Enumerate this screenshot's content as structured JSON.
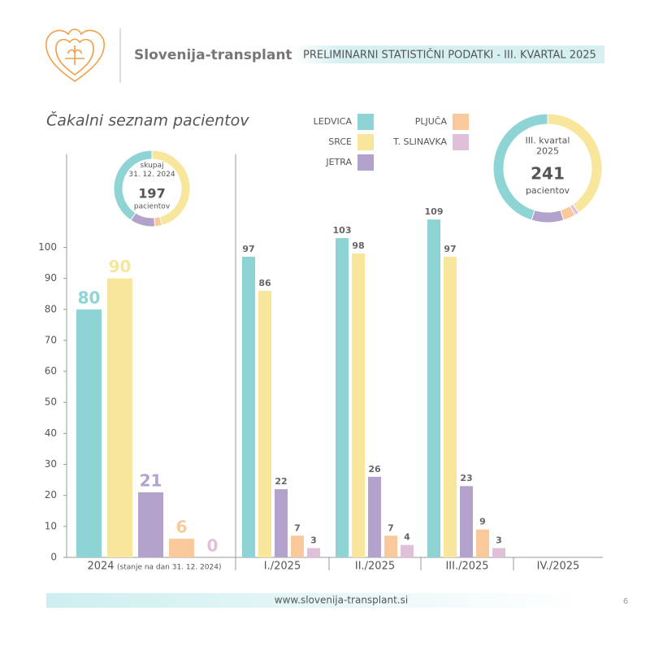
{
  "header": {
    "brand": "Slovenija-transplant",
    "title": "PRELIMINARNI STATISTIČNI PODATKI - III. KVARTAL 2025"
  },
  "chart_data": {
    "type": "bar",
    "title": "Čakalni seznam pacientov",
    "categories": [
      "2024",
      "I./2025",
      "II./2025",
      "III./2025",
      "IV./2025"
    ],
    "category_note": "(stanje na dan 31. 12. 2024)",
    "series": [
      {
        "name": "LEDVICA",
        "color": "#8fd4d4",
        "values": [
          80,
          97,
          103,
          109,
          null
        ]
      },
      {
        "name": "SRCE",
        "color": "#f8e69c",
        "values": [
          90,
          86,
          98,
          97,
          null
        ]
      },
      {
        "name": "JETRA",
        "color": "#b3a3cc",
        "values": [
          21,
          22,
          26,
          23,
          null
        ]
      },
      {
        "name": "PLJUČA",
        "color": "#f9c99b",
        "values": [
          6,
          7,
          7,
          9,
          null
        ]
      },
      {
        "name": "T. SLINAVKA",
        "color": "#e0c0d8",
        "values": [
          0,
          3,
          4,
          3,
          null
        ]
      }
    ],
    "ylim": [
      0,
      130
    ],
    "yticks": [
      0,
      10,
      20,
      30,
      40,
      50,
      60,
      70,
      80,
      90,
      100
    ],
    "donuts": [
      {
        "lines": [
          "skupaj",
          "31. 12. 2024"
        ],
        "total": 197,
        "unit": "pacientov"
      },
      {
        "lines": [
          "III. kvartal",
          "2025"
        ],
        "total": 241,
        "unit": "pacientov"
      }
    ]
  },
  "footer": {
    "url": "www.slovenija-transplant.si",
    "page": "6"
  }
}
